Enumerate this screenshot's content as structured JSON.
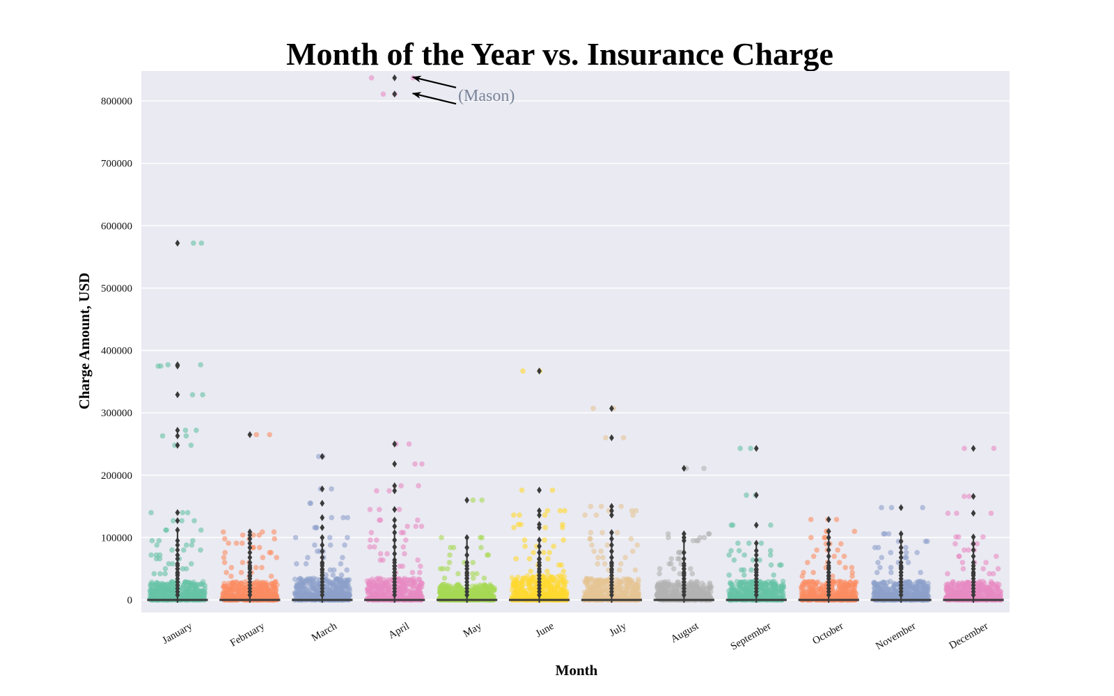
{
  "chart_data": {
    "type": "box",
    "title": "Month of the Year vs. Insurance Charge",
    "xlabel": "Month",
    "ylabel": "Charge Amount, USD",
    "ylim": [
      -20000,
      850000
    ],
    "yticks": [
      0,
      100000,
      200000,
      300000,
      400000,
      500000,
      600000,
      700000,
      800000
    ],
    "grid": true,
    "background_color": "#eaeaf2",
    "categories": [
      "January",
      "February",
      "March",
      "April",
      "May",
      "June",
      "July",
      "August",
      "September",
      "October",
      "November",
      "December"
    ],
    "colors": [
      "#66c2a5",
      "#fc8d62",
      "#8da0cb",
      "#e78ac3",
      "#a6d854",
      "#ffd92f",
      "#e5c494",
      "#b3b3b3",
      "#66c2a5",
      "#fc8d62",
      "#8da0cb",
      "#e78ac3"
    ],
    "box_color": "#3a3a3a",
    "series": [
      {
        "month": "January",
        "median": 0,
        "dense_max": 30000,
        "outliers": [
          572000,
          377000,
          375000,
          329000,
          272000,
          263000,
          248000,
          140000,
          127000,
          112000,
          95000,
          88000,
          80000,
          72000,
          66000,
          58000,
          50000,
          42000
        ]
      },
      {
        "month": "February",
        "median": 0,
        "dense_max": 30000,
        "outliers": [
          265000,
          109000,
          104000,
          98000,
          91000,
          84000,
          76000,
          68000,
          60000,
          52000,
          44000,
          38000
        ]
      },
      {
        "month": "March",
        "median": 0,
        "dense_max": 35000,
        "outliers": [
          230000,
          178000,
          155000,
          132000,
          116000,
          100000,
          88000,
          78000,
          68000,
          58000,
          48000,
          40000
        ]
      },
      {
        "month": "April",
        "median": 0,
        "dense_max": 35000,
        "outliers": [
          837000,
          811000,
          250000,
          218000,
          183000,
          175000,
          145000,
          128000,
          118000,
          108000,
          96000,
          85000,
          74000,
          64000,
          54000,
          44000
        ]
      },
      {
        "month": "May",
        "median": 0,
        "dense_max": 25000,
        "outliers": [
          160000,
          100000,
          84000,
          72000,
          60000,
          50000,
          42000,
          35000
        ]
      },
      {
        "month": "June",
        "median": 0,
        "dense_max": 40000,
        "outliers": [
          367000,
          176000,
          143000,
          136000,
          121000,
          116000,
          96000,
          86000,
          76000,
          66000,
          56000,
          46000
        ]
      },
      {
        "month": "July",
        "median": 0,
        "dense_max": 35000,
        "outliers": [
          307000,
          260000,
          150000,
          143000,
          136000,
          108000,
          98000,
          88000,
          78000,
          68000,
          58000,
          48000
        ]
      },
      {
        "month": "August",
        "median": 0,
        "dense_max": 30000,
        "outliers": [
          211000,
          106000,
          100000,
          95000,
          76000,
          66000,
          58000,
          50000,
          42000
        ]
      },
      {
        "month": "September",
        "median": 0,
        "dense_max": 30000,
        "outliers": [
          243000,
          168000,
          120000,
          91000,
          79000,
          72000,
          64000,
          56000,
          48000,
          40000
        ]
      },
      {
        "month": "October",
        "median": 0,
        "dense_max": 30000,
        "outliers": [
          129000,
          110000,
          100000,
          90000,
          80000,
          70000,
          60000,
          52000,
          44000,
          38000
        ]
      },
      {
        "month": "November",
        "median": 0,
        "dense_max": 30000,
        "outliers": [
          148000,
          106000,
          94000,
          84000,
          76000,
          68000,
          60000,
          52000,
          44000
        ]
      },
      {
        "month": "December",
        "median": 0,
        "dense_max": 30000,
        "outliers": [
          243000,
          166000,
          139000,
          101000,
          90000,
          80000,
          70000,
          60000,
          50000,
          42000
        ]
      }
    ],
    "annotations": [
      {
        "text": "(Mason)",
        "month": "April",
        "points": [
          837000,
          811000
        ]
      }
    ]
  }
}
